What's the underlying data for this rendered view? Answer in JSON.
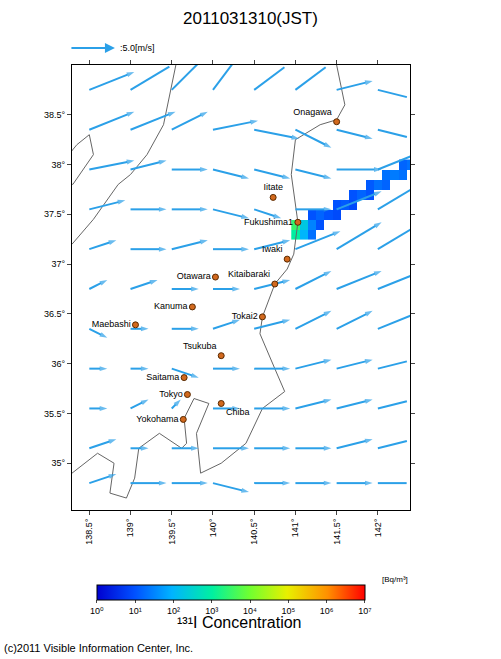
{
  "chart_data": {
    "type": "map",
    "title": "2011031310(JST)",
    "xlim": [
      138.29,
      142.39
    ],
    "ylim": [
      34.53,
      39.0
    ],
    "xticks": [
      {
        "value": 138.5,
        "label": "138.5°"
      },
      {
        "value": 139,
        "label": "139°"
      },
      {
        "value": 139.5,
        "label": "139.5°"
      },
      {
        "value": 140,
        "label": "140°"
      },
      {
        "value": 140.5,
        "label": "140.5°"
      },
      {
        "value": 141,
        "label": "141°"
      },
      {
        "value": 141.5,
        "label": "141.5°"
      },
      {
        "value": 142,
        "label": "142°"
      }
    ],
    "yticks": [
      {
        "value": 35,
        "label": "35°"
      },
      {
        "value": 35.5,
        "label": "35.5°"
      },
      {
        "value": 36,
        "label": "36°"
      },
      {
        "value": 36.5,
        "label": "36.5°"
      },
      {
        "value": 37,
        "label": "37°"
      },
      {
        "value": 37.5,
        "label": "37.5°"
      },
      {
        "value": 38,
        "label": "38°"
      },
      {
        "value": 38.5,
        "label": "38.5°"
      }
    ],
    "grid": false,
    "coastlines": [
      [
        [
          141.5,
          39.0
        ],
        [
          141.6,
          38.6
        ],
        [
          141.5,
          38.45
        ],
        [
          141.3,
          38.4
        ],
        [
          141.0,
          38.25
        ],
        [
          140.95,
          37.9
        ],
        [
          141.03,
          37.42
        ],
        [
          140.98,
          37.1
        ],
        [
          140.9,
          36.95
        ],
        [
          140.75,
          36.8
        ],
        [
          140.6,
          36.47
        ],
        [
          140.57,
          36.3
        ],
        [
          140.75,
          35.95
        ],
        [
          140.87,
          35.72
        ],
        [
          140.6,
          35.55
        ],
        [
          140.4,
          35.2
        ],
        [
          140.1,
          35.0
        ],
        [
          139.85,
          34.9
        ],
        [
          139.8,
          35.3
        ],
        [
          139.95,
          35.6
        ],
        [
          139.77,
          35.65
        ],
        [
          139.65,
          35.45
        ],
        [
          139.68,
          35.2
        ],
        [
          139.62,
          35.15
        ],
        [
          139.35,
          35.3
        ],
        [
          139.1,
          35.15
        ],
        [
          139.05,
          34.85
        ],
        [
          138.95,
          34.65
        ],
        [
          138.75,
          34.7
        ],
        [
          138.8,
          35.0
        ],
        [
          138.6,
          35.1
        ],
        [
          138.29,
          34.9
        ]
      ],
      [
        [
          139.55,
          39.0
        ],
        [
          139.45,
          38.6
        ],
        [
          139.4,
          38.4
        ],
        [
          139.2,
          38.1
        ],
        [
          139.0,
          37.9
        ],
        [
          138.85,
          37.8
        ],
        [
          138.55,
          37.45
        ],
        [
          138.29,
          37.2
        ]
      ],
      [
        [
          138.2,
          37.85
        ],
        [
          138.3,
          37.8
        ],
        [
          138.55,
          38.1
        ],
        [
          138.5,
          38.3
        ],
        [
          138.35,
          38.2
        ],
        [
          138.2,
          38.05
        ],
        [
          138.2,
          37.85
        ]
      ]
    ],
    "cities": [
      {
        "name": "Onagawa",
        "lon": 141.5,
        "lat": 38.43
      },
      {
        "name": "Iitate",
        "lon": 140.73,
        "lat": 37.67
      },
      {
        "name": "Fukushima1",
        "lon": 141.03,
        "lat": 37.42
      },
      {
        "name": "Iwaki",
        "lon": 140.9,
        "lat": 37.05
      },
      {
        "name": "Otawara",
        "lon": 140.03,
        "lat": 36.87
      },
      {
        "name": "Kitaibaraki",
        "lon": 140.75,
        "lat": 36.8
      },
      {
        "name": "Kanuma",
        "lon": 139.75,
        "lat": 36.57
      },
      {
        "name": "Tokai2",
        "lon": 140.6,
        "lat": 36.47
      },
      {
        "name": "Maebashi",
        "lon": 139.06,
        "lat": 36.39
      },
      {
        "name": "Tsukuba",
        "lon": 140.1,
        "lat": 36.08
      },
      {
        "name": "Saitama",
        "lon": 139.65,
        "lat": 35.86
      },
      {
        "name": "Tokyo",
        "lon": 139.69,
        "lat": 35.69
      },
      {
        "name": "Chiba",
        "lon": 140.1,
        "lat": 35.6
      },
      {
        "name": "Yokohama",
        "lon": 139.64,
        "lat": 35.44
      }
    ],
    "wind": {
      "scale": {
        "value": 5.0,
        "label": ":5.0[m/s]"
      },
      "color": "#2ba0e8",
      "lon": [
        138.5,
        139.0,
        139.5,
        140.0,
        140.5,
        141.0,
        141.5,
        142.0
      ],
      "lat": [
        38.75,
        38.35,
        37.95,
        37.55,
        37.15,
        36.75,
        36.35,
        35.95,
        35.55,
        35.15,
        34.8
      ],
      "u": [
        [
          5,
          5,
          4,
          3,
          4,
          4,
          4,
          4
        ],
        [
          5,
          5,
          4,
          5,
          5,
          4,
          4,
          4
        ],
        [
          5,
          4,
          4,
          4,
          4,
          4,
          5,
          5
        ],
        [
          4,
          4,
          4,
          4,
          3,
          4,
          5,
          5
        ],
        [
          3,
          4,
          4,
          4,
          4,
          5,
          5,
          5
        ],
        [
          2,
          3,
          3,
          3,
          4,
          4,
          5,
          5
        ],
        [
          2,
          2,
          3,
          3,
          4,
          4,
          4,
          5
        ],
        [
          2,
          2,
          3,
          3,
          4,
          4,
          4,
          4
        ],
        [
          2,
          2,
          1,
          3,
          4,
          4,
          4,
          4
        ],
        [
          3,
          2,
          3,
          4,
          4,
          4,
          4,
          4
        ],
        [
          3,
          4,
          4,
          4,
          4,
          4,
          4,
          4
        ]
      ],
      "v": [
        [
          2,
          3,
          4,
          4,
          3,
          3,
          1,
          -1
        ],
        [
          2,
          2,
          2,
          1,
          -1,
          -2,
          -1,
          -1
        ],
        [
          1,
          1,
          0,
          -1,
          -1,
          -1,
          0,
          2
        ],
        [
          1,
          0,
          0,
          -1,
          -1,
          0,
          2,
          3
        ],
        [
          1,
          0,
          1,
          0,
          1,
          2,
          3,
          3
        ],
        [
          1,
          1,
          0,
          0,
          1,
          2,
          2,
          2
        ],
        [
          -1,
          0,
          0,
          1,
          1,
          2,
          2,
          2
        ],
        [
          0,
          0,
          -1,
          0,
          0,
          1,
          1,
          1
        ],
        [
          0,
          1,
          1,
          0,
          0,
          1,
          1,
          1
        ],
        [
          1,
          0,
          0,
          0,
          0,
          0,
          1,
          1
        ],
        [
          1,
          0,
          0,
          -1,
          0,
          0,
          0,
          0
        ]
      ]
    },
    "concentration": {
      "title": "¹³¹I Concentration",
      "unit": "[Bq/m³]",
      "log": true,
      "lon": [
        141.0,
        141.1,
        141.2,
        141.3,
        141.4,
        141.5,
        141.6,
        141.7,
        141.8,
        141.9,
        142.0,
        142.1,
        142.2,
        142.3,
        142.4
      ],
      "lat": [
        37.3,
        37.4,
        37.5,
        37.6,
        37.7,
        37.8,
        37.9,
        38.0
      ],
      "cells": [
        [
          1000,
          100,
          20,
          null,
          null,
          null,
          null,
          null,
          null,
          null,
          null,
          null,
          null,
          null,
          null
        ],
        [
          3000,
          200,
          30,
          10,
          null,
          null,
          null,
          null,
          null,
          null,
          null,
          null,
          null,
          null,
          null
        ],
        [
          null,
          null,
          10,
          15,
          10,
          8,
          null,
          null,
          null,
          null,
          null,
          null,
          null,
          null,
          null
        ],
        [
          null,
          null,
          null,
          null,
          null,
          10,
          12,
          8,
          null,
          null,
          null,
          null,
          null,
          null,
          null
        ],
        [
          null,
          null,
          null,
          null,
          null,
          null,
          null,
          10,
          15,
          10,
          null,
          null,
          null,
          null,
          null
        ],
        [
          null,
          null,
          null,
          null,
          null,
          null,
          null,
          null,
          null,
          12,
          20,
          15,
          null,
          null,
          null
        ],
        [
          null,
          null,
          null,
          null,
          null,
          null,
          null,
          null,
          null,
          null,
          null,
          20,
          25,
          20,
          null
        ],
        [
          null,
          null,
          null,
          null,
          null,
          null,
          null,
          null,
          null,
          null,
          null,
          null,
          null,
          15,
          20
        ]
      ],
      "range": [
        1,
        10000000
      ],
      "ticks": [
        {
          "value": 1,
          "label": "10⁰"
        },
        {
          "value": 10,
          "label": "10¹"
        },
        {
          "value": 100,
          "label": "10²"
        },
        {
          "value": 1000,
          "label": "10³"
        },
        {
          "value": 10000,
          "label": "10⁴"
        },
        {
          "value": 100000,
          "label": "10⁵"
        },
        {
          "value": 1000000,
          "label": "10⁶"
        },
        {
          "value": 10000000,
          "label": "10⁷"
        }
      ]
    },
    "copyright": "(c)2011 Visible Information Center, Inc."
  }
}
